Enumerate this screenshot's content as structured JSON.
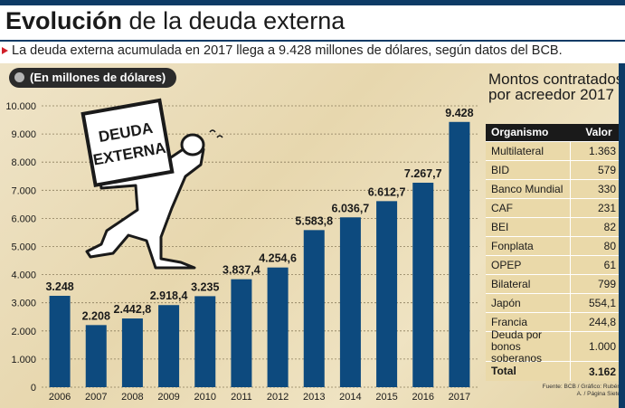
{
  "header": {
    "title_bold": "Evolución",
    "title_rest": "de la deuda externa",
    "subtitle": "La deuda externa acumulada en 2017 llega a 9.428 millones de dólares, según datos del BCB."
  },
  "unit_label": "(En millones de dólares)",
  "illustration": {
    "sign_text": "DEUDA EXTERNA"
  },
  "colors": {
    "bar": "#0d4a7e",
    "accent": "#d0202a",
    "table_header": "#1a1a1a",
    "table_bg": "#ead9a9"
  },
  "chart_data": {
    "type": "bar",
    "categories": [
      "2006",
      "2007",
      "2008",
      "2009",
      "2010",
      "2011",
      "2012",
      "2013",
      "2014",
      "2015",
      "2016",
      "2017"
    ],
    "values": [
      3248,
      2208,
      2442.8,
      2918.4,
      3235,
      3837.4,
      4254.6,
      5583.8,
      6036.7,
      6612.7,
      7267.7,
      9428
    ],
    "data_labels": [
      "3.248",
      "2.208",
      "2.442,8",
      "2.918,4",
      "3.235",
      "3.837,4",
      "4.254,6",
      "5.583,8",
      "6.036,7",
      "6.612,7",
      "7.267,7",
      "9.428"
    ],
    "ylim": [
      0,
      10000
    ],
    "yticks": [
      0,
      1000,
      2000,
      3000,
      4000,
      5000,
      6000,
      7000,
      8000,
      9000,
      10000
    ],
    "ytick_labels": [
      "0",
      "1.000",
      "2.000",
      "3.000",
      "4.000",
      "5.000",
      "6.000",
      "7.000",
      "8.000",
      "9.000",
      "10.000"
    ],
    "grid": true,
    "xlabel": "",
    "ylabel": ""
  },
  "table": {
    "title": "Montos contratados por acreedor 2017",
    "headers": [
      "Organismo",
      "Valor"
    ],
    "rows": [
      [
        "Multilateral",
        "1.363"
      ],
      [
        "BID",
        "579"
      ],
      [
        "Banco Mundial",
        "330"
      ],
      [
        "CAF",
        "231"
      ],
      [
        "BEI",
        "82"
      ],
      [
        "Fonplata",
        "80"
      ],
      [
        "OPEP",
        "61"
      ],
      [
        "Bilateral",
        "799"
      ],
      [
        "Japón",
        "554,1"
      ],
      [
        "Francia",
        "244,8"
      ],
      [
        "Deuda por bonos soberanos",
        "1.000"
      ]
    ],
    "total": [
      "Total",
      "3.162"
    ]
  },
  "source": "Fuente: BCB / Gráfico: Rubén A. / Página Siete"
}
